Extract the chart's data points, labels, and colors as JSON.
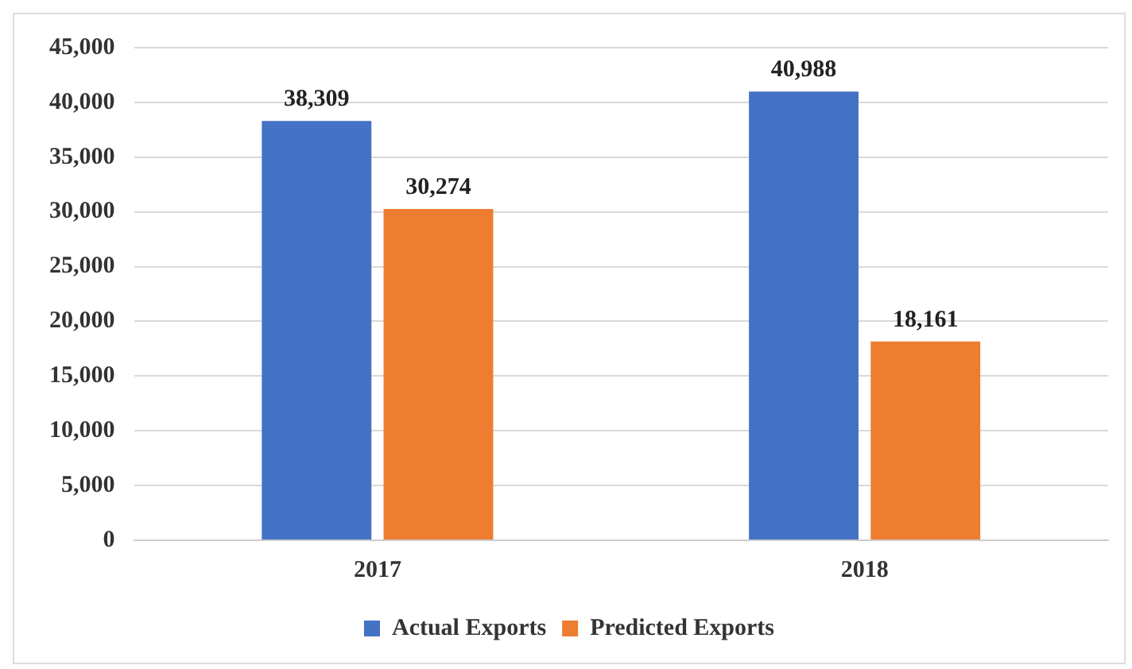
{
  "chart_data": {
    "type": "bar",
    "categories": [
      "2017",
      "2018"
    ],
    "series": [
      {
        "name": "Actual Exports",
        "color": "#4472c4",
        "values": [
          38309,
          40988
        ]
      },
      {
        "name": "Predicted Exports",
        "color": "#ed7d31",
        "values": [
          30274,
          18161
        ]
      }
    ],
    "ylim": [
      0,
      45000
    ],
    "yticks": [
      {
        "value": 0,
        "label": "0"
      },
      {
        "value": 5000,
        "label": "5,000"
      },
      {
        "value": 10000,
        "label": "10,000"
      },
      {
        "value": 15000,
        "label": "15,000"
      },
      {
        "value": 20000,
        "label": "20,000"
      },
      {
        "value": 25000,
        "label": "25,000"
      },
      {
        "value": 30000,
        "label": "30,000"
      },
      {
        "value": 35000,
        "label": "35,000"
      },
      {
        "value": 40000,
        "label": "40,000"
      },
      {
        "value": 45000,
        "label": "45,000"
      }
    ],
    "value_labels": [
      [
        "38,309",
        "40,988"
      ],
      [
        "30,274",
        "18,161"
      ]
    ],
    "grid": "y",
    "legend": "bottom"
  }
}
